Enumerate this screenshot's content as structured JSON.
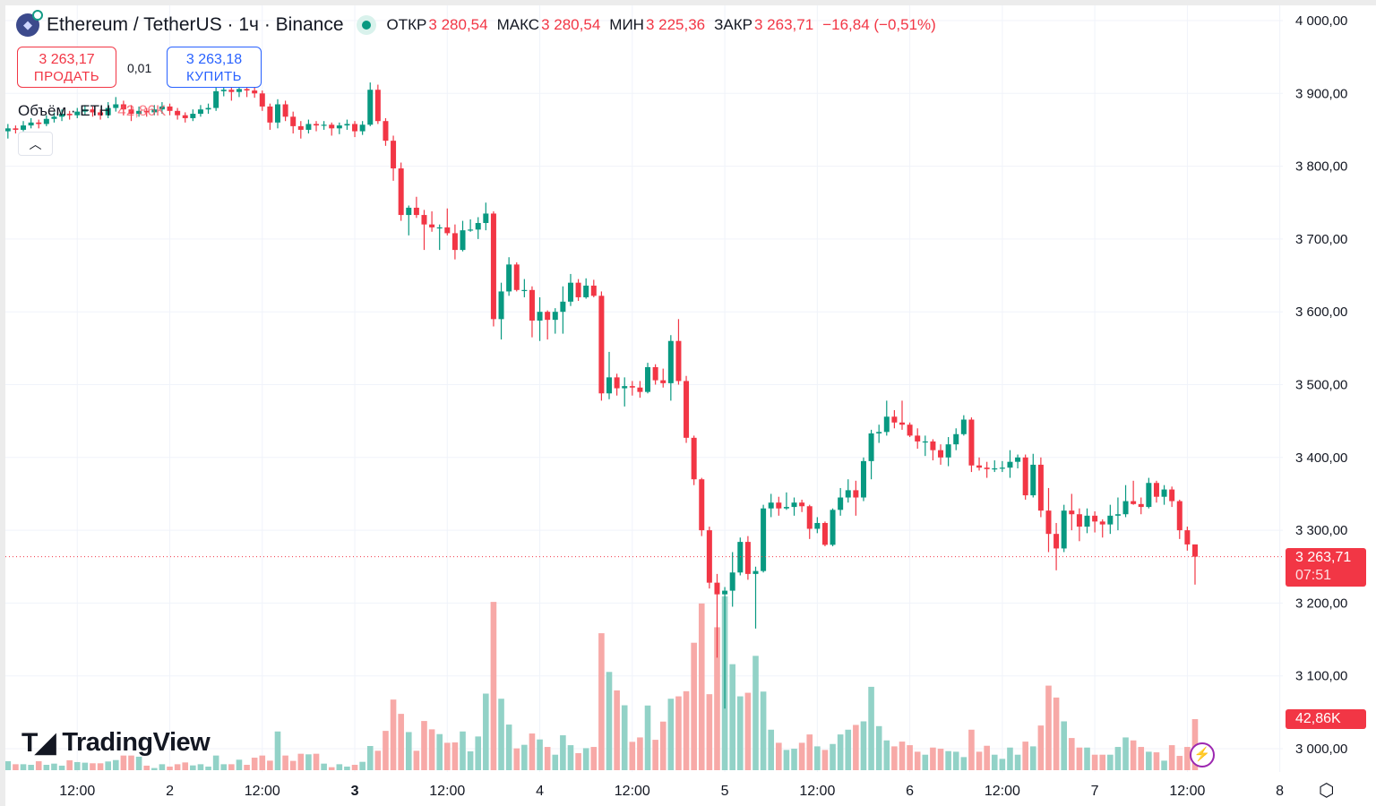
{
  "header": {
    "symbol_title": "Ethereum / TetherUS · 1ч · Binance",
    "open_label": "ОТКР",
    "open_value": "3 280,54",
    "high_label": "МАКС",
    "high_value": "3 280,54",
    "low_label": "МИН",
    "low_value": "3 225,36",
    "close_label": "ЗАКР",
    "close_value": "3 263,71",
    "change": "−16,84 (−0,51%)"
  },
  "trade": {
    "sell_price": "3 263,17",
    "sell_label": "ПРОДАТЬ",
    "spread": "0,01",
    "buy_price": "3 263,18",
    "buy_label": "КУПИТЬ"
  },
  "volume_legend": {
    "label": "Объём · ETH",
    "value": "42,86K"
  },
  "collapse_icon": "chevron-up",
  "brand": "TradingView",
  "price_label": {
    "value": "3 263,71",
    "countdown": "07:51"
  },
  "volume_label": "42,86K",
  "colors": {
    "up": "#089981",
    "down": "#f23645",
    "up_volume": "#92d2c7",
    "down_volume": "#f7a9a7",
    "buy": "#2962ff",
    "lightning": "#9c27b0"
  },
  "chart_data": {
    "type": "candlestick",
    "title": "Ethereum / TetherUS · 1ч · Binance",
    "interval": "1h",
    "ylim": [
      3000,
      4000
    ],
    "y_ticks": [
      "4 000,00",
      "3 900,00",
      "3 800,00",
      "3 700,00",
      "3 600,00",
      "3 500,00",
      "3 400,00",
      "3 300,00",
      "3 200,00",
      "3 100,00",
      "3 000,00"
    ],
    "x_ticks": [
      "12:00",
      "2",
      "12:00",
      "3",
      "12:00",
      "4",
      "12:00",
      "5",
      "12:00",
      "6",
      "12:00",
      "7",
      "12:00",
      "8"
    ],
    "grid": true,
    "last_price": 3263.71,
    "candles_ohlc": [
      [
        3848,
        3858,
        3838,
        3852
      ],
      [
        3852,
        3856,
        3845,
        3850
      ],
      [
        3850,
        3862,
        3848,
        3856
      ],
      [
        3856,
        3866,
        3852,
        3860
      ],
      [
        3860,
        3864,
        3852,
        3858
      ],
      [
        3858,
        3870,
        3855,
        3865
      ],
      [
        3865,
        3874,
        3860,
        3868
      ],
      [
        3868,
        3878,
        3862,
        3872
      ],
      [
        3872,
        3876,
        3864,
        3870
      ],
      [
        3870,
        3880,
        3866,
        3875
      ],
      [
        3875,
        3884,
        3870,
        3878
      ],
      [
        3878,
        3882,
        3868,
        3874
      ],
      [
        3874,
        3878,
        3864,
        3870
      ],
      [
        3870,
        3888,
        3866,
        3880
      ],
      [
        3880,
        3895,
        3875,
        3885
      ],
      [
        3885,
        3890,
        3870,
        3878
      ],
      [
        3878,
        3884,
        3862,
        3872
      ],
      [
        3872,
        3882,
        3868,
        3876
      ],
      [
        3876,
        3880,
        3868,
        3874
      ],
      [
        3874,
        3884,
        3870,
        3878
      ],
      [
        3878,
        3888,
        3872,
        3882
      ],
      [
        3882,
        3886,
        3870,
        3876
      ],
      [
        3876,
        3880,
        3864,
        3870
      ],
      [
        3870,
        3874,
        3860,
        3866
      ],
      [
        3866,
        3878,
        3862,
        3872
      ],
      [
        3872,
        3884,
        3868,
        3878
      ],
      [
        3878,
        3886,
        3872,
        3880
      ],
      [
        3880,
        3912,
        3876,
        3903
      ],
      [
        3903,
        3912,
        3896,
        3905
      ],
      [
        3905,
        3910,
        3890,
        3902
      ],
      [
        3902,
        3912,
        3895,
        3906
      ],
      [
        3906,
        3912,
        3895,
        3904
      ],
      [
        3904,
        3910,
        3894,
        3900
      ],
      [
        3900,
        3904,
        3876,
        3882
      ],
      [
        3882,
        3886,
        3850,
        3860
      ],
      [
        3860,
        3892,
        3852,
        3885
      ],
      [
        3885,
        3890,
        3862,
        3868
      ],
      [
        3868,
        3875,
        3845,
        3855
      ],
      [
        3855,
        3862,
        3838,
        3850
      ],
      [
        3850,
        3864,
        3845,
        3858
      ],
      [
        3858,
        3862,
        3848,
        3856
      ],
      [
        3856,
        3862,
        3850,
        3857
      ],
      [
        3857,
        3860,
        3842,
        3852
      ],
      [
        3852,
        3860,
        3844,
        3856
      ],
      [
        3856,
        3864,
        3850,
        3858
      ],
      [
        3858,
        3862,
        3840,
        3848
      ],
      [
        3848,
        3862,
        3843,
        3857
      ],
      [
        3857,
        3915,
        3855,
        3905
      ],
      [
        3905,
        3912,
        3858,
        3862
      ],
      [
        3862,
        3866,
        3828,
        3835
      ],
      [
        3835,
        3842,
        3780,
        3797
      ],
      [
        3797,
        3805,
        3725,
        3733
      ],
      [
        3733,
        3746,
        3705,
        3743
      ],
      [
        3743,
        3758,
        3729,
        3733
      ],
      [
        3733,
        3740,
        3685,
        3720
      ],
      [
        3720,
        3738,
        3710,
        3716
      ],
      [
        3716,
        3720,
        3685,
        3716
      ],
      [
        3716,
        3742,
        3705,
        3708
      ],
      [
        3708,
        3720,
        3672,
        3685
      ],
      [
        3685,
        3725,
        3683,
        3712
      ],
      [
        3712,
        3727,
        3710,
        3713
      ],
      [
        3713,
        3730,
        3700,
        3722
      ],
      [
        3722,
        3750,
        3712,
        3735
      ],
      [
        3735,
        3738,
        3580,
        3590
      ],
      [
        3590,
        3640,
        3562,
        3628
      ],
      [
        3628,
        3675,
        3622,
        3665
      ],
      [
        3665,
        3668,
        3628,
        3630
      ],
      [
        3630,
        3645,
        3620,
        3630
      ],
      [
        3630,
        3635,
        3565,
        3588
      ],
      [
        3588,
        3620,
        3560,
        3600
      ],
      [
        3600,
        3602,
        3562,
        3589
      ],
      [
        3589,
        3605,
        3570,
        3600
      ],
      [
        3600,
        3635,
        3570,
        3614
      ],
      [
        3614,
        3652,
        3608,
        3640
      ],
      [
        3640,
        3645,
        3615,
        3620
      ],
      [
        3620,
        3646,
        3618,
        3636
      ],
      [
        3636,
        3644,
        3620,
        3622
      ],
      [
        3622,
        3628,
        3478,
        3488
      ],
      [
        3488,
        3545,
        3480,
        3510
      ],
      [
        3510,
        3515,
        3485,
        3495
      ],
      [
        3495,
        3510,
        3470,
        3498
      ],
      [
        3498,
        3505,
        3485,
        3496
      ],
      [
        3496,
        3505,
        3482,
        3490
      ],
      [
        3490,
        3530,
        3488,
        3524
      ],
      [
        3524,
        3528,
        3500,
        3506
      ],
      [
        3506,
        3522,
        3496,
        3502
      ],
      [
        3502,
        3568,
        3478,
        3560
      ],
      [
        3560,
        3590,
        3500,
        3505
      ],
      [
        3505,
        3512,
        3420,
        3427
      ],
      [
        3427,
        3430,
        3362,
        3370
      ],
      [
        3370,
        3372,
        3292,
        3300
      ],
      [
        3300,
        3305,
        3220,
        3228
      ],
      [
        3228,
        3240,
        3125,
        3212
      ],
      [
        3212,
        3222,
        3055,
        3217
      ],
      [
        3217,
        3270,
        3195,
        3242
      ],
      [
        3242,
        3290,
        3238,
        3284
      ],
      [
        3284,
        3292,
        3232,
        3240
      ],
      [
        3240,
        3250,
        3165,
        3244
      ],
      [
        3244,
        3335,
        3242,
        3330
      ],
      [
        3330,
        3350,
        3318,
        3338
      ],
      [
        3338,
        3346,
        3320,
        3330
      ],
      [
        3330,
        3352,
        3328,
        3332
      ],
      [
        3332,
        3345,
        3320,
        3338
      ],
      [
        3338,
        3342,
        3325,
        3333
      ],
      [
        3333,
        3335,
        3288,
        3302
      ],
      [
        3302,
        3318,
        3296,
        3310
      ],
      [
        3310,
        3312,
        3278,
        3280
      ],
      [
        3280,
        3330,
        3278,
        3328
      ],
      [
        3328,
        3358,
        3320,
        3345
      ],
      [
        3345,
        3370,
        3338,
        3355
      ],
      [
        3355,
        3368,
        3320,
        3345
      ],
      [
        3345,
        3400,
        3340,
        3395
      ],
      [
        3395,
        3438,
        3370,
        3433
      ],
      [
        3433,
        3445,
        3420,
        3435
      ],
      [
        3435,
        3478,
        3430,
        3456
      ],
      [
        3456,
        3465,
        3440,
        3448
      ],
      [
        3448,
        3478,
        3438,
        3445
      ],
      [
        3445,
        3448,
        3428,
        3430
      ],
      [
        3430,
        3440,
        3412,
        3422
      ],
      [
        3422,
        3430,
        3402,
        3422
      ],
      [
        3422,
        3425,
        3396,
        3410
      ],
      [
        3410,
        3418,
        3390,
        3400
      ],
      [
        3400,
        3428,
        3388,
        3418
      ],
      [
        3418,
        3440,
        3410,
        3432
      ],
      [
        3432,
        3458,
        3430,
        3452
      ],
      [
        3452,
        3455,
        3380,
        3389
      ],
      [
        3389,
        3400,
        3382,
        3386
      ],
      [
        3386,
        3394,
        3372,
        3384
      ],
      [
        3384,
        3396,
        3380,
        3385
      ],
      [
        3385,
        3395,
        3380,
        3386
      ],
      [
        3386,
        3410,
        3372,
        3394
      ],
      [
        3394,
        3404,
        3385,
        3400
      ],
      [
        3400,
        3404,
        3342,
        3348
      ],
      [
        3348,
        3405,
        3345,
        3390
      ],
      [
        3390,
        3400,
        3318,
        3327
      ],
      [
        3327,
        3358,
        3270,
        3295
      ],
      [
        3295,
        3310,
        3245,
        3275
      ],
      [
        3275,
        3335,
        3270,
        3327
      ],
      [
        3327,
        3350,
        3300,
        3322
      ],
      [
        3322,
        3330,
        3285,
        3305
      ],
      [
        3305,
        3330,
        3296,
        3320
      ],
      [
        3320,
        3326,
        3297,
        3312
      ],
      [
        3312,
        3315,
        3290,
        3308
      ],
      [
        3308,
        3335,
        3295,
        3320
      ],
      [
        3320,
        3345,
        3300,
        3322
      ],
      [
        3322,
        3362,
        3318,
        3340
      ],
      [
        3340,
        3368,
        3335,
        3336
      ],
      [
        3336,
        3345,
        3322,
        3332
      ],
      [
        3332,
        3372,
        3330,
        3365
      ],
      [
        3365,
        3368,
        3338,
        3346
      ],
      [
        3346,
        3362,
        3335,
        3356
      ],
      [
        3356,
        3360,
        3332,
        3340
      ],
      [
        3340,
        3342,
        3288,
        3300
      ],
      [
        3300,
        3305,
        3272,
        3280.54
      ],
      [
        3280.54,
        3280.54,
        3225.36,
        3263.71
      ]
    ],
    "volume_k": [
      7.5,
      5,
      5,
      4.5,
      7.5,
      4.5,
      5.5,
      3.8,
      8.3,
      6.8,
      6.3,
      5.8,
      5.8,
      7.3,
      8.5,
      12.3,
      12.3,
      11.3,
      3.8,
      1.8,
      5,
      3,
      5,
      6.5,
      4,
      5,
      3,
      12.3,
      5,
      5,
      8.8,
      4.5,
      10.5,
      12.3,
      8,
      32.5,
      12.3,
      7.8,
      13.8,
      13.3,
      13.8,
      5.5,
      2.5,
      5,
      3,
      4.5,
      7,
      20.3,
      16.3,
      33,
      59.3,
      47.3,
      32,
      16.3,
      41.3,
      34.3,
      30.3,
      23,
      23.3,
      32.5,
      15.8,
      28.3,
      64.3,
      141.3,
      60,
      38.3,
      18.3,
      21.3,
      30.8,
      25.8,
      19.5,
      13,
      29.3,
      21,
      14.3,
      18.5,
      19.5,
      115,
      82.5,
      67,
      54.5,
      23.8,
      27.5,
      54.3,
      25.5,
      40.8,
      60,
      62,
      66.3,
      107,
      140,
      63.8,
      120,
      146,
      89,
      62,
      65,
      96,
      66,
      34,
      23,
      17,
      18,
      23,
      30,
      20,
      17,
      22,
      30,
      34,
      38,
      41,
      70,
      37,
      25,
      20,
      24,
      21,
      15.5,
      13,
      19,
      18,
      16,
      15.5,
      11,
      34,
      15.5,
      20.5,
      13,
      9.5,
      19,
      13,
      24,
      20,
      37.5,
      71,
      61,
      41,
      27,
      19,
      19,
      13,
      13,
      13,
      19.5,
      27.5,
      25,
      19.5,
      15.5,
      15,
      8,
      21,
      12,
      19.5,
      42.86
    ]
  }
}
